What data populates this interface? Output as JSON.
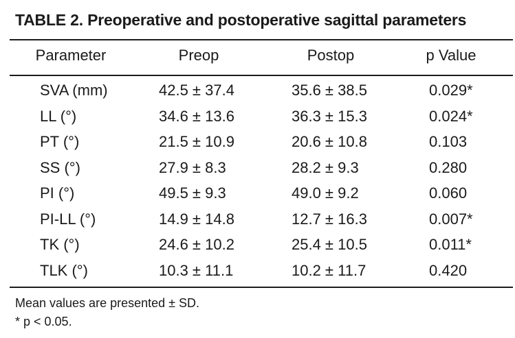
{
  "table": {
    "title": "TABLE 2. Preoperative and postoperative sagittal parameters",
    "headers": {
      "parameter": "Parameter",
      "preop": "Preop",
      "postop": "Postop",
      "p_value": "p Value"
    },
    "rows": [
      {
        "parameter": "SVA (mm)",
        "preop": "42.5 ± 37.4",
        "postop": "35.6 ± 38.5",
        "p_value": "0.029*"
      },
      {
        "parameter": "LL (°)",
        "preop": "34.6 ± 13.6",
        "postop": "36.3 ± 15.3",
        "p_value": "0.024*"
      },
      {
        "parameter": "PT (°)",
        "preop": "21.5 ± 10.9",
        "postop": "20.6 ± 10.8",
        "p_value": "0.103"
      },
      {
        "parameter": "SS (°)",
        "preop": "27.9 ± 8.3",
        "postop": "28.2 ± 9.3",
        "p_value": "0.280"
      },
      {
        "parameter": "PI (°)",
        "preop": "49.5 ± 9.3",
        "postop": "49.0 ± 9.2",
        "p_value": "0.060"
      },
      {
        "parameter": "PI-LL (°)",
        "preop": "14.9 ± 14.8",
        "postop": "12.7 ± 16.3",
        "p_value": "0.007*"
      },
      {
        "parameter": "TK (°)",
        "preop": "24.6 ± 10.2",
        "postop": "25.4 ± 10.5",
        "p_value": "0.011*"
      },
      {
        "parameter": "TLK (°)",
        "preop": "10.3 ± 11.1",
        "postop": "10.2 ± 11.7",
        "p_value": "0.420"
      }
    ],
    "footnotes": [
      "Mean values are presented ± SD.",
      "* p < 0.05."
    ]
  }
}
